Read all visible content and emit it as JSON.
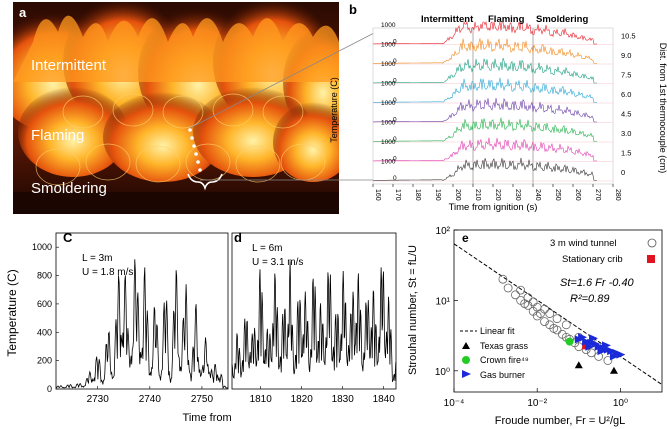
{
  "figure": {
    "panel_a": {
      "letter": "a",
      "labels": [
        "Intermittent",
        "Flaming",
        "Smoldering"
      ]
    },
    "panel_b": {
      "letter": "b",
      "region_labels": [
        "Intermittent",
        "Flaming",
        "Smoldering"
      ],
      "ylabel": "Temperature (C)",
      "ylabel_right": "Dist. from 1st thermocouple (cm)",
      "xlabel": "Time from ignition (s)",
      "xticks": [
        "160",
        "170",
        "180",
        "190",
        "200",
        "210",
        "220",
        "230",
        "240",
        "250",
        "260",
        "270",
        "280"
      ],
      "trace_ticks": [
        "1000",
        "1000",
        "1000",
        "1000",
        "1000",
        "1000",
        "1000",
        "1000"
      ],
      "zero_ticks": [
        "0",
        "0",
        "0",
        "0",
        "0",
        "0",
        "0",
        "0"
      ],
      "distances": [
        "10.5",
        "9.0",
        "7.5",
        "6.0",
        "4.5",
        "3.0",
        "1.5",
        "0"
      ],
      "trace_colors": [
        "#e8202a",
        "#f08a1c",
        "#1aa080",
        "#29a7d6",
        "#6a3fa8",
        "#22b24a",
        "#e040b0",
        "#333333"
      ]
    },
    "panel_c": {
      "letter": "C",
      "annotation": [
        "L = 3m",
        "U = 1.8 m/s"
      ],
      "ylabel": "Temperature (C)",
      "xlabel": "Time from ignition (s)",
      "yticks": [
        "0",
        "200",
        "400",
        "600",
        "800",
        "1000"
      ],
      "xticks": [
        "2730",
        "2740",
        "2750"
      ]
    },
    "panel_d": {
      "letter": "d",
      "annotation": [
        "L = 6m",
        "U = 3.1 m/s"
      ],
      "xticks": [
        "1810",
        "1820",
        "1830",
        "1840"
      ]
    },
    "panel_e": {
      "letter": "e",
      "ylabel": "Strouhal number, St = fL/U",
      "xlabel": "Froude number, Fr = U²/gL",
      "legend_top": [
        "3 m wind tunnel",
        "Stationary crib"
      ],
      "equation": "St=1.6 Fr -0.40",
      "r2": "R²=0.89",
      "legend_bottom": [
        "Linear fit",
        "Texas grass",
        "Crown fire⁴⁹",
        "Gas burner"
      ],
      "xticks": [
        "10⁻⁴",
        "10⁻²",
        "10⁰"
      ],
      "yticks": [
        "10⁰",
        "10¹",
        "10²"
      ],
      "colors": {
        "crib": "#e0141e",
        "crown": "#22cc22",
        "burner": "#1a2ad8"
      }
    }
  },
  "chart_data": [
    {
      "type": "line",
      "panel": "b",
      "xlabel": "Time from ignition (s)",
      "ylabel": "Temperature (C)",
      "xlim": [
        160,
        280
      ],
      "series": [
        {
          "name": "10.5",
          "x": [
            160,
            195,
            200,
            205,
            210,
            215,
            220,
            225,
            230,
            235,
            240,
            245,
            250,
            255,
            260,
            265,
            270
          ],
          "values": [
            20,
            40,
            400,
            900,
            700,
            950,
            800,
            900,
            700,
            850,
            600,
            700,
            500,
            550,
            400,
            300,
            200
          ]
        },
        {
          "name": "9.0",
          "x": [
            160,
            195,
            200,
            205,
            210,
            215,
            220,
            225,
            230,
            235,
            240,
            245,
            250,
            255,
            260,
            265,
            270
          ],
          "values": [
            20,
            40,
            350,
            850,
            750,
            900,
            780,
            880,
            720,
            830,
            620,
            680,
            520,
            540,
            420,
            320,
            220
          ]
        },
        {
          "name": "7.5",
          "x": [
            160,
            195,
            200,
            205,
            210,
            215,
            220,
            225,
            230,
            235,
            240,
            245,
            250,
            255,
            260,
            265,
            270
          ],
          "values": [
            20,
            40,
            380,
            820,
            760,
            870,
            800,
            860,
            740,
            820,
            640,
            690,
            540,
            560,
            430,
            330,
            230
          ]
        },
        {
          "name": "6.0",
          "x": [
            160,
            195,
            200,
            205,
            210,
            215,
            220,
            225,
            230,
            235,
            240,
            245,
            250,
            255,
            260,
            265,
            270
          ],
          "values": [
            20,
            40,
            360,
            800,
            740,
            850,
            790,
            840,
            730,
            800,
            650,
            690,
            550,
            560,
            440,
            340,
            240
          ]
        },
        {
          "name": "4.5",
          "x": [
            160,
            195,
            200,
            205,
            210,
            215,
            220,
            225,
            230,
            235,
            240,
            245,
            250,
            255,
            260,
            265,
            270
          ],
          "values": [
            20,
            40,
            340,
            780,
            720,
            830,
            780,
            820,
            720,
            790,
            650,
            680,
            560,
            560,
            450,
            350,
            250
          ]
        },
        {
          "name": "3.0",
          "x": [
            160,
            195,
            200,
            205,
            210,
            215,
            220,
            225,
            230,
            235,
            240,
            245,
            250,
            255,
            260,
            265,
            270
          ],
          "values": [
            20,
            40,
            320,
            760,
            700,
            810,
            770,
            800,
            710,
            780,
            650,
            670,
            570,
            560,
            460,
            360,
            260
          ]
        },
        {
          "name": "1.5",
          "x": [
            160,
            195,
            200,
            205,
            210,
            215,
            220,
            225,
            230,
            235,
            240,
            245,
            250,
            255,
            260,
            265,
            270
          ],
          "values": [
            20,
            40,
            300,
            740,
            690,
            790,
            760,
            780,
            700,
            770,
            650,
            660,
            580,
            560,
            470,
            370,
            270
          ]
        },
        {
          "name": "0",
          "x": [
            160,
            195,
            200,
            205,
            210,
            215,
            220,
            225,
            230,
            235,
            240,
            245,
            250,
            255,
            260,
            265,
            270
          ],
          "values": [
            20,
            40,
            280,
            720,
            680,
            770,
            750,
            760,
            690,
            760,
            650,
            650,
            590,
            560,
            480,
            380,
            280
          ]
        }
      ]
    },
    {
      "type": "line",
      "panel": "c",
      "xlabel": "Time from ignition (s)",
      "ylabel": "Temperature (C)",
      "xlim": [
        2722,
        2755
      ],
      "ylim": [
        0,
        1100
      ],
      "series": [
        {
          "x": [
            2722,
            2727,
            2728,
            2730,
            2731,
            2732,
            2733,
            2734,
            2735,
            2736,
            2737,
            2738,
            2739,
            2740,
            2741,
            2742,
            2743,
            2744,
            2745,
            2746,
            2747,
            2748,
            2749,
            2750,
            2751,
            2752,
            2753,
            2754
          ],
          "values": [
            20,
            40,
            80,
            250,
            120,
            450,
            200,
            800,
            1050,
            300,
            1000,
            550,
            900,
            250,
            650,
            180,
            780,
            120,
            900,
            350,
            750,
            150,
            700,
            120,
            480,
            100,
            250,
            60
          ]
        }
      ]
    },
    {
      "type": "line",
      "panel": "d",
      "xlim": [
        1803,
        1843
      ],
      "ylim": [
        0,
        1100
      ],
      "series": [
        {
          "x": [
            1803,
            1804,
            1805,
            1807,
            1808,
            1810,
            1812,
            1813,
            1815,
            1817,
            1818,
            1820,
            1822,
            1823,
            1825,
            1827,
            1828,
            1830,
            1832,
            1833,
            1835,
            1837,
            1838,
            1840,
            1842
          ],
          "values": [
            200,
            400,
            300,
            600,
            350,
            850,
            300,
            900,
            400,
            950,
            350,
            800,
            450,
            850,
            500,
            900,
            450,
            800,
            500,
            1000,
            450,
            850,
            500,
            950,
            400
          ]
        }
      ]
    },
    {
      "type": "scatter",
      "panel": "e",
      "xscale": "log",
      "yscale": "log",
      "xlim": [
        0.0001,
        10
      ],
      "ylim": [
        0.5,
        100
      ],
      "fit": {
        "name": "Linear fit",
        "coef": 1.6,
        "exponent": -0.4
      },
      "series": [
        {
          "name": "3 m wind tunnel",
          "marker": "open-circle",
          "x": [
            0.0015,
            0.002,
            0.003,
            0.004,
            0.005,
            0.006,
            0.008,
            0.01,
            0.012,
            0.015,
            0.02,
            0.025,
            0.03,
            0.04,
            0.05,
            0.06,
            0.08,
            0.1,
            0.15,
            0.2,
            0.3,
            0.5,
            0.004,
            0.006,
            0.01,
            0.02,
            0.03,
            0.05,
            0.1,
            0.2,
            0.008,
            0.015
          ],
          "values": [
            20,
            15,
            12,
            10,
            9,
            8.5,
            7,
            6,
            6.5,
            5,
            4.5,
            4,
            3.8,
            3.3,
            3,
            2.8,
            2.5,
            2.2,
            2,
            1.8,
            1.6,
            1.4,
            14,
            11,
            8,
            6.5,
            5.5,
            4.5,
            3,
            2.5,
            9.5,
            7.5
          ]
        },
        {
          "name": "Stationary crib",
          "marker": "square",
          "x": [
            0.15
          ],
          "values": [
            2.3
          ]
        },
        {
          "name": "Texas grass",
          "marker": "triangle",
          "x": [
            0.1,
            0.7
          ],
          "values": [
            1.2,
            1.0
          ]
        },
        {
          "name": "Crown fire⁴⁹",
          "marker": "circle",
          "x": [
            0.06
          ],
          "values": [
            2.6
          ]
        },
        {
          "name": "Gas burner",
          "marker": "right-triangle",
          "x": [
            0.1,
            0.15,
            0.2,
            0.25,
            0.3,
            0.4,
            0.5,
            0.6,
            0.8,
            1.0,
            0.12,
            0.18,
            0.35,
            0.7,
            0.45,
            0.22
          ],
          "values": [
            2.8,
            2.6,
            2.5,
            2.4,
            2.2,
            2.1,
            2.0,
            1.9,
            1.8,
            1.7,
            3.0,
            2.2,
            1.9,
            1.6,
            2.3,
            2.9
          ]
        }
      ]
    }
  ]
}
